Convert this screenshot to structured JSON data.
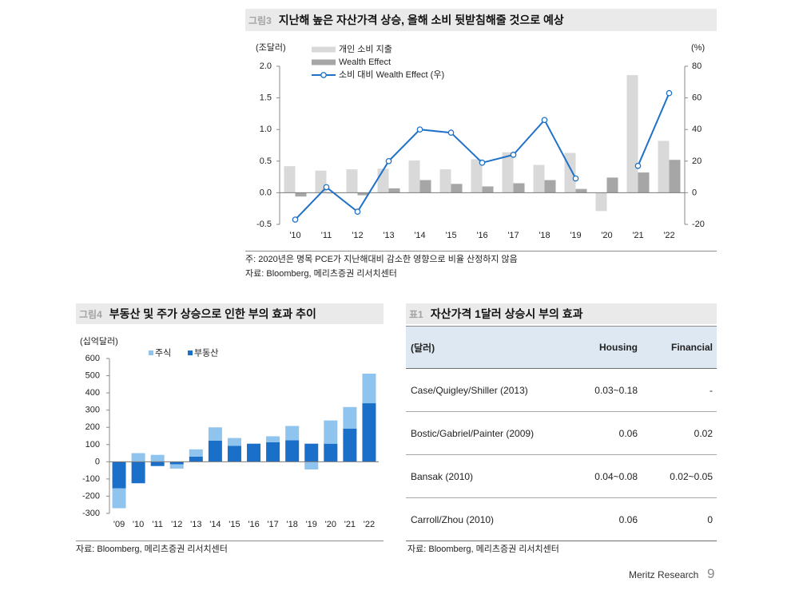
{
  "chart_data": [
    {
      "type": "bar",
      "figure_label": "그림3",
      "title": "지난해 높은 자산가격 상승, 올해 소비 뒷받침해줄 것으로 예상",
      "y_left_unit": "(조달러)",
      "y_right_unit": "(%)",
      "categories": [
        "'10",
        "'11",
        "'12",
        "'13",
        "'14",
        "'15",
        "'16",
        "'17",
        "'18",
        "'19",
        "'20",
        "'21",
        "'22"
      ],
      "ylim_left": [
        -0.5,
        2.0
      ],
      "ylim_right": [
        -20,
        80
      ],
      "yticks_left": [
        "2.0",
        "1.5",
        "1.0",
        "0.5",
        "0.0",
        "-0.5"
      ],
      "yticks_right": [
        "80",
        "60",
        "40",
        "20",
        "0",
        "-20"
      ],
      "series": [
        {
          "name": "개인 소비 지출",
          "type": "bar",
          "axis": "left",
          "color": "#d9d9d9",
          "values": [
            0.42,
            0.35,
            0.37,
            0.38,
            0.51,
            0.37,
            0.53,
            0.64,
            0.44,
            0.63,
            -0.29,
            1.86,
            0.82
          ]
        },
        {
          "name": "Wealth Effect",
          "type": "bar",
          "axis": "left",
          "color": "#a6a6a6",
          "values": [
            -0.06,
            -0.01,
            -0.04,
            0.07,
            0.2,
            0.14,
            0.1,
            0.15,
            0.2,
            0.06,
            0.24,
            0.32,
            0.52
          ]
        },
        {
          "name": "소비 대비 Wealth Effect (우)",
          "type": "line",
          "axis": "right",
          "color": "#1f72c8",
          "values": [
            -17,
            3.5,
            -12,
            20,
            40,
            38,
            19,
            24,
            46,
            9,
            null,
            17,
            63
          ]
        }
      ],
      "legend": "top-left",
      "grid": false,
      "note": "주: 2020년은 명목 PCE가 지난해대비 감소한 영향으로 비율 산정하지 않음",
      "source": "자료: Bloomberg, 메리츠증권 리서치센터"
    },
    {
      "type": "bar",
      "stacked": true,
      "figure_label": "그림4",
      "title": "부동산 및 주가 상승으로 인한 부의 효과 추이",
      "y_unit": "(십억달러)",
      "categories": [
        "'09",
        "'10",
        "'11",
        "'12",
        "'13",
        "'14",
        "'15",
        "'16",
        "'17",
        "'18",
        "'19",
        "'20",
        "'21",
        "'22"
      ],
      "ylim": [
        -300,
        600
      ],
      "yticks": [
        "600",
        "500",
        "400",
        "300",
        "200",
        "100",
        "0",
        "-100",
        "-200",
        "-300"
      ],
      "series": [
        {
          "name": "주식",
          "color": "#8fc4ef",
          "values": [
            -115,
            50,
            40,
            -25,
            42,
            77,
            45,
            0,
            35,
            83,
            -45,
            135,
            125,
            172
          ]
        },
        {
          "name": "부동산",
          "color": "#1a6fc9",
          "values": [
            -155,
            -125,
            -25,
            -15,
            30,
            123,
            93,
            105,
            113,
            125,
            105,
            105,
            193,
            340
          ]
        }
      ],
      "legend": "top",
      "grid": false,
      "source": "자료: Bloomberg, 메리츠증권 리서치센터"
    }
  ],
  "table1": {
    "label": "표1",
    "title": "자산가격 1달러 상승시 부의 효과",
    "columns": [
      "(달러)",
      "Housing",
      "Financial"
    ],
    "rows": [
      [
        "Case/Quigley/Shiller (2013)",
        "0.03~0.18",
        "-"
      ],
      [
        "Bostic/Gabriel/Painter (2009)",
        "0.06",
        "0.02"
      ],
      [
        "Bansak (2010)",
        "0.04~0.08",
        "0.02~0.05"
      ],
      [
        "Carroll/Zhou (2010)",
        "0.06",
        "0"
      ]
    ],
    "source": "자료: Bloomberg, 메리츠증권 리서치센터"
  },
  "footer": {
    "brand": "Meritz Research",
    "page": "9"
  }
}
